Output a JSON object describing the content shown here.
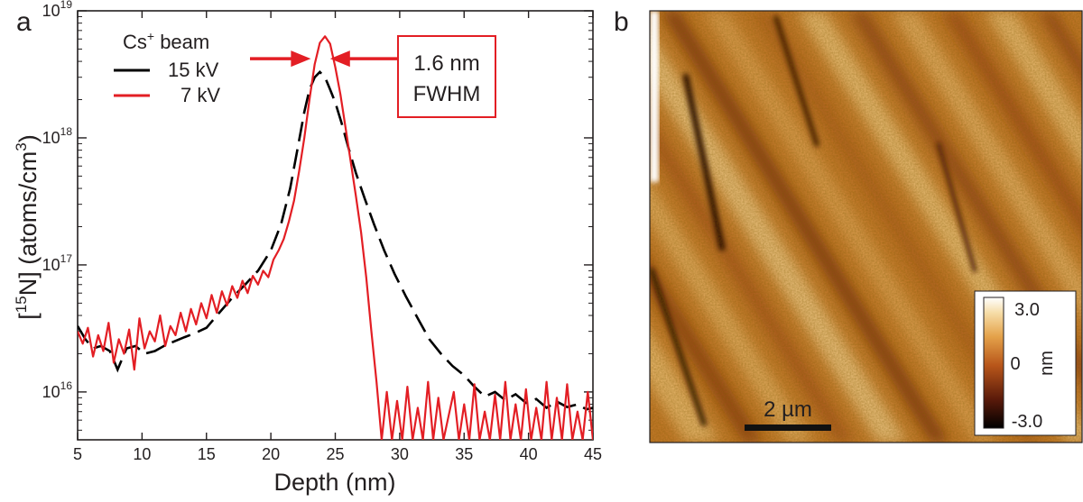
{
  "panel_a_letter": "a",
  "panel_b_letter": "b",
  "chart_data": {
    "type": "line",
    "xlabel": "Depth (nm)",
    "ylabel_parts": [
      "[",
      "15",
      "N]  (atoms/cm",
      "3",
      ")"
    ],
    "xlim": [
      5,
      45
    ],
    "ylim": [
      4200000000000000.0,
      1e+19
    ],
    "yscale": "log",
    "x_ticks": [
      5,
      10,
      15,
      20,
      25,
      30,
      35,
      40,
      45
    ],
    "y_ticks": [
      {
        "value": 1e+16,
        "base": "10",
        "exp": "16"
      },
      {
        "value": 1e+17,
        "base": "10",
        "exp": "17"
      },
      {
        "value": 1e+18,
        "base": "10",
        "exp": "18"
      },
      {
        "value": 1e+19,
        "base": "10",
        "exp": "19"
      }
    ],
    "legend": {
      "title_parts": [
        "Cs",
        "+",
        " beam"
      ],
      "placement": "top-left"
    },
    "series": [
      {
        "name": "15 kV",
        "color": "#000000",
        "style": "dashed",
        "x": [
          5.0,
          5.6,
          6.2,
          6.8,
          7.5,
          8.1,
          8.8,
          9.5,
          10.2,
          11.0,
          11.7,
          12.5,
          13.3,
          14.1,
          15.0,
          16.0,
          17.0,
          18.0,
          19.0,
          20.0,
          20.8,
          21.5,
          22.1,
          22.6,
          23.0,
          23.4,
          23.8,
          24.2,
          24.6,
          25.0,
          25.5,
          26.0,
          26.6,
          27.3,
          28.0,
          28.8,
          29.6,
          30.5,
          31.4,
          32.3,
          33.2,
          34.1,
          35.0,
          35.8,
          36.6,
          37.4,
          38.2,
          39.0,
          39.8,
          40.6,
          41.4,
          42.2,
          43.0,
          43.8,
          44.5,
          45.0
        ],
        "y": [
          3.3e+16,
          2.6e+16,
          2.2e+16,
          2.3e+16,
          2.1e+16,
          1.5e+16,
          2.2e+16,
          2.3e+16,
          2e+16,
          2.1e+16,
          2.3e+16,
          2.5e+16,
          2.7e+16,
          2.9e+16,
          3.2e+16,
          4.2e+16,
          5.5e+16,
          7e+16,
          9e+16,
          1.3e+17,
          2.1e+17,
          4e+17,
          8.5e+17,
          1.6e+18,
          2.4e+18,
          3e+18,
          3.3e+18,
          3e+18,
          2.4e+18,
          1.9e+18,
          1.3e+18,
          8.5e+17,
          5.3e+17,
          3.3e+17,
          2.1e+17,
          1.3e+17,
          8.5e+16,
          5.6e+16,
          3.8e+16,
          2.6e+16,
          2e+16,
          1.6e+16,
          1.35e+16,
          1.1e+16,
          9200000000000000.0,
          1e+16,
          8600000000000000.0,
          9600000000000000.0,
          8200000000000000.0,
          8800000000000000.0,
          7500000000000000.0,
          8400000000000000.0,
          7600000000000000.0,
          8000000000000000.0,
          7300000000000000.0,
          7500000000000000.0
        ]
      },
      {
        "name": "7 kV",
        "color": "#e31e24",
        "style": "solid",
        "x": [
          5.0,
          5.4,
          5.8,
          6.2,
          6.6,
          7.0,
          7.4,
          7.8,
          8.2,
          8.6,
          9.0,
          9.4,
          9.8,
          10.2,
          10.6,
          11.0,
          11.4,
          11.8,
          12.2,
          12.6,
          13.0,
          13.4,
          13.8,
          14.2,
          14.6,
          15.0,
          15.4,
          15.8,
          16.2,
          16.6,
          17.0,
          17.4,
          17.8,
          18.2,
          18.6,
          19.0,
          19.4,
          19.8,
          20.2,
          20.6,
          21.0,
          21.4,
          21.8,
          22.2,
          22.6,
          23.0,
          23.4,
          23.8,
          24.2,
          24.6,
          25.0,
          25.4,
          25.8,
          26.2,
          26.6,
          27.0,
          27.4,
          27.8,
          28.2,
          28.6,
          29.0,
          29.4,
          29.8,
          30.2,
          30.6,
          31.0,
          31.4,
          31.8,
          32.2,
          32.6,
          33.0,
          33.4,
          33.8,
          34.2,
          34.6,
          35.0,
          35.4,
          35.8,
          36.2,
          36.6,
          37.0,
          37.4,
          37.8,
          38.2,
          38.6,
          39.0,
          39.4,
          39.8,
          40.2,
          40.6,
          41.0,
          41.4,
          41.8,
          42.2,
          42.6,
          43.0,
          43.4,
          43.8,
          44.2,
          44.6,
          45.0
        ],
        "y": [
          3e+16,
          2.4e+16,
          3.2e+16,
          1.9e+16,
          2.8e+16,
          2.1e+16,
          3.5e+16,
          1.7e+16,
          2.6e+16,
          2e+16,
          3.1e+16,
          1.5e+16,
          3.8e+16,
          2.2e+16,
          3e+16,
          2.5e+16,
          4e+16,
          2.3e+16,
          3.3e+16,
          2.8e+16,
          4.2e+16,
          3e+16,
          4.5e+16,
          3.4e+16,
          5e+16,
          3.8e+16,
          5.8e+16,
          4.2e+16,
          6.2e+16,
          4.8e+16,
          6.8e+16,
          5.5e+16,
          7.5e+16,
          6e+16,
          8.2e+16,
          7e+16,
          9e+16,
          8e+16,
          1.1e+17,
          1.3e+17,
          1.6e+17,
          2.2e+17,
          3.2e+17,
          5.5e+17,
          1e+18,
          2e+18,
          3.8e+18,
          5.6e+18,
          6.3e+18,
          5.5e+18,
          3.6e+18,
          2.2e+18,
          1.2e+18,
          6.5e+17,
          3.5e+17,
          1.8e+17,
          8e+16,
          3e+16,
          1.2e+16,
          4200000000000000.0,
          1e+16,
          4200000000000000.0,
          8500000000000000.0,
          4200000000000000.0,
          1.1e+16,
          4200000000000000.0,
          7500000000000000.0,
          4200000000000000.0,
          1.2e+16,
          4200000000000000.0,
          9000000000000000.0,
          4200000000000000.0,
          6500000000000000.0,
          1e+16,
          4200000000000000.0,
          8000000000000000.0,
          4200000000000000.0,
          1.15e+16,
          4200000000000000.0,
          7000000000000000.0,
          4200000000000000.0,
          9500000000000000.0,
          4200000000000000.0,
          1.2e+16,
          4200000000000000.0,
          8000000000000000.0,
          4200000000000000.0,
          1.05e+16,
          4200000000000000.0,
          7500000000000000.0,
          4200000000000000.0,
          1.2e+16,
          4200000000000000.0,
          9000000000000000.0,
          4200000000000000.0,
          1.15e+16,
          4200000000000000.0,
          7000000000000000.0,
          4200000000000000.0,
          1e+16,
          4200000000000000.0
        ]
      }
    ],
    "annotation": {
      "lines": [
        "1.6 nm",
        "FWHM"
      ],
      "color": "#e31e24",
      "arrow_left_x": 23.1,
      "arrow_right_x": 24.6,
      "arrow_y": 4.2e+18
    }
  },
  "afm_image": {
    "scale_bar": "2 µm",
    "colorbar": {
      "max_label": "3.0",
      "mid_label": "0",
      "min_label": "-3.0",
      "unit": "nm",
      "colors": [
        "#000000",
        "#5a1a0a",
        "#b8561a",
        "#e4a24a",
        "#f6dca6",
        "#ffffff"
      ]
    }
  }
}
